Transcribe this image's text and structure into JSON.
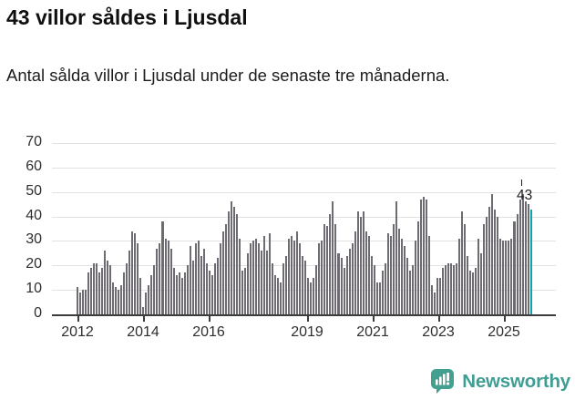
{
  "header": {
    "title": "43 villor såldes i Ljusdal",
    "subtitle": "Antal sålda villor i Ljusdal under de senaste tre månaderna."
  },
  "chart_data": {
    "type": "bar",
    "title": "43 villor såldes i Ljusdal",
    "xlabel": "",
    "ylabel": "",
    "x_start": "2012-01",
    "x_end": "2025-10",
    "x_freq": "monthly",
    "values": [
      11,
      9,
      10,
      10,
      17,
      19,
      21,
      21,
      17,
      19,
      26,
      22,
      20,
      13,
      11,
      10,
      12,
      17,
      21,
      26,
      34,
      33,
      29,
      15,
      3,
      9,
      12,
      16,
      20,
      27,
      29,
      38,
      31,
      30,
      27,
      19,
      16,
      17,
      15,
      17,
      20,
      28,
      22,
      29,
      30,
      24,
      27,
      21,
      18,
      16,
      21,
      23,
      29,
      34,
      37,
      42,
      46,
      44,
      41,
      31,
      18,
      19,
      25,
      29,
      30,
      31,
      29,
      26,
      32,
      26,
      33,
      21,
      16,
      15,
      13,
      21,
      24,
      31,
      32,
      30,
      34,
      29,
      24,
      22,
      15,
      13,
      15,
      20,
      29,
      30,
      37,
      36,
      41,
      46,
      37,
      25,
      23,
      19,
      24,
      27,
      29,
      34,
      42,
      40,
      42,
      34,
      32,
      24,
      20,
      13,
      13,
      18,
      21,
      33,
      32,
      37,
      46,
      35,
      31,
      28,
      23,
      18,
      20,
      30,
      38,
      47,
      48,
      47,
      32,
      12,
      9,
      15,
      15,
      19,
      20,
      21,
      21,
      20,
      21,
      31,
      42,
      37,
      24,
      18,
      17,
      19,
      31,
      25,
      37,
      40,
      44,
      49,
      43,
      40,
      31,
      30,
      30,
      30,
      31,
      38,
      41,
      47,
      49,
      46,
      45,
      43
    ],
    "highlight_index": 165,
    "highlight_value": 43,
    "annotation_label": "43",
    "ylim": [
      0,
      70
    ],
    "yticks": [
      "0",
      "10",
      "20",
      "30",
      "40",
      "50",
      "60",
      "70"
    ],
    "xticks": [
      {
        "label": "2012",
        "year": 2012
      },
      {
        "label": "2014",
        "year": 2014
      },
      {
        "label": "2016",
        "year": 2016
      },
      {
        "label": "2019",
        "year": 2019
      },
      {
        "label": "2021",
        "year": 2021
      },
      {
        "label": "2023",
        "year": 2023
      },
      {
        "label": "2025",
        "year": 2025
      }
    ],
    "grid": true,
    "legend": false,
    "bar_color": "#6e6b72",
    "highlight_color": "#0ba6ac"
  },
  "footer": {
    "brand": "Newsworthy",
    "brand_color": "#3f9e93"
  }
}
